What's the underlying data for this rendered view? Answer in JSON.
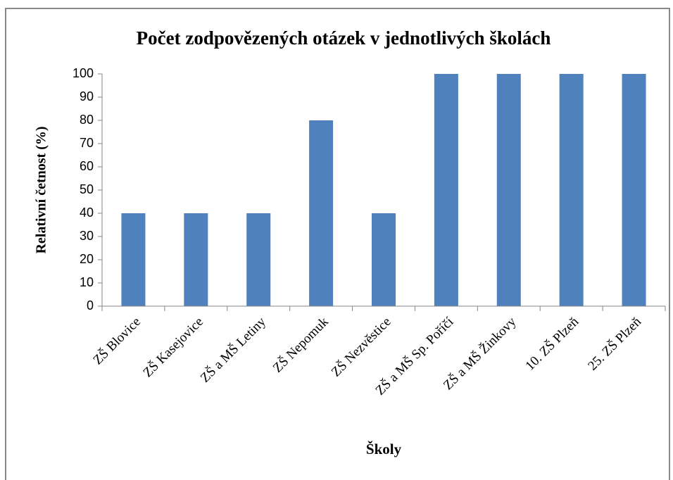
{
  "chart_data": {
    "type": "bar",
    "title": "Počet zodpovězených otázek v jednotlivých školách",
    "x_label": "Školy",
    "y_label": "Relativní četnost (%)",
    "categories": [
      "ZŠ Blovice",
      "ZŠ Kasejovice",
      "ZŠ a MŠ Letiny",
      "ZŠ Nepomuk",
      "ZŠ Nezvěstice",
      "ZŠ a MŠ Sp. Poříčí",
      "ZŠ a MŠ Žinkovy",
      "10. ZŠ Plzeň",
      "25. ZŠ Plzeň"
    ],
    "values": [
      40,
      40,
      40,
      80,
      40,
      100,
      100,
      100,
      100
    ],
    "color": "#4f81bd",
    "ylim": [
      0,
      100
    ],
    "yticks": [
      0,
      10,
      20,
      30,
      40,
      50,
      60,
      70,
      80,
      90,
      100
    ],
    "grid": false
  }
}
